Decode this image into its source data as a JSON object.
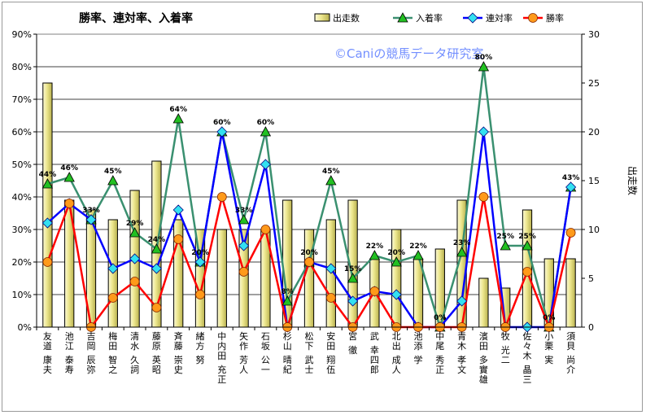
{
  "chart_data": {
    "type": "bar+line",
    "title": "勝率、連対率、入着率",
    "watermark": "©Caniの競馬データ研究室",
    "y2label": "出走数",
    "ylim": [
      0,
      90
    ],
    "y2lim": [
      0,
      30
    ],
    "yticks": [
      "0%",
      "10%",
      "20%",
      "30%",
      "40%",
      "50%",
      "60%",
      "70%",
      "80%",
      "90%"
    ],
    "y2ticks": [
      "0",
      "5",
      "10",
      "15",
      "20",
      "25",
      "30"
    ],
    "grid": true,
    "legend_position": "top-right",
    "categories": [
      "友道 康夫",
      "池江 泰寿",
      "吉岡 辰弥",
      "梅田 智之",
      "清水 久詞",
      "藤原 英昭",
      "斉藤 崇史",
      "緒方 努",
      "中内田 充正",
      "矢作 芳人",
      "石坂 公一",
      "杉山 晴紀",
      "松下 武士",
      "安田 翔伍",
      "宮 徹",
      "武 幸四郎",
      "北出 成人",
      "池添 学",
      "中尾 秀正",
      "青木 孝文",
      "濱田 多實雄",
      "牧 光二",
      "佐々木 晶三",
      "小栗 実",
      "須貝 尚介"
    ],
    "series": [
      {
        "name": "出走数",
        "type": "bar",
        "axis": "right",
        "color": "#f0eca0",
        "values": [
          25,
          13,
          12,
          11,
          14,
          17,
          11,
          10,
          10,
          10,
          10,
          13,
          10,
          11,
          13,
          7,
          10,
          7,
          8,
          13,
          5,
          4,
          12,
          7,
          7
        ]
      },
      {
        "name": "入着率",
        "type": "line",
        "axis": "left",
        "color": "#3a9070",
        "marker": "triangle",
        "values": [
          44,
          46,
          33,
          45,
          29,
          24,
          64,
          20,
          60,
          33,
          60,
          8,
          20,
          45,
          15,
          22,
          20,
          22,
          0,
          23,
          80,
          25,
          25,
          0,
          43
        ]
      },
      {
        "name": "連対率",
        "type": "line",
        "axis": "left",
        "color": "#0000ff",
        "marker": "diamond",
        "values": [
          32,
          38,
          33,
          18,
          21,
          18,
          36,
          20,
          60,
          25,
          50,
          0,
          20,
          18,
          8,
          11,
          10,
          0,
          0,
          8,
          60,
          0,
          0,
          0,
          43
        ]
      },
      {
        "name": "勝率",
        "type": "line",
        "axis": "left",
        "color": "#ff0000",
        "marker": "circle",
        "values": [
          20,
          38,
          0,
          9,
          14,
          6,
          27,
          10,
          40,
          17,
          30,
          0,
          20,
          9,
          0,
          11,
          0,
          0,
          0,
          0,
          40,
          0,
          17,
          0,
          29
        ]
      }
    ],
    "data_labels": [
      {
        "series": "入着率",
        "index": 0,
        "text": "44%"
      },
      {
        "series": "入着率",
        "index": 1,
        "text": "46%"
      },
      {
        "series": "入着率",
        "index": 2,
        "text": "33%"
      },
      {
        "series": "入着率",
        "index": 3,
        "text": "45%"
      },
      {
        "series": "入着率",
        "index": 4,
        "text": "29%"
      },
      {
        "series": "入着率",
        "index": 5,
        "text": "24%"
      },
      {
        "series": "入着率",
        "index": 6,
        "text": "64%"
      },
      {
        "series": "入着率",
        "index": 7,
        "text": "20%"
      },
      {
        "series": "入着率",
        "index": 8,
        "text": "60%"
      },
      {
        "series": "入着率",
        "index": 9,
        "text": "33%"
      },
      {
        "series": "入着率",
        "index": 10,
        "text": "60%"
      },
      {
        "series": "入着率",
        "index": 11,
        "text": "8%"
      },
      {
        "series": "入着率",
        "index": 12,
        "text": "20%"
      },
      {
        "series": "入着率",
        "index": 13,
        "text": "45%"
      },
      {
        "series": "入着率",
        "index": 14,
        "text": "15%"
      },
      {
        "series": "入着率",
        "index": 15,
        "text": "22%"
      },
      {
        "series": "入着率",
        "index": 16,
        "text": "20%"
      },
      {
        "series": "入着率",
        "index": 17,
        "text": "22%"
      },
      {
        "series": "入着率",
        "index": 18,
        "text": "0%"
      },
      {
        "series": "入着率",
        "index": 19,
        "text": "23%"
      },
      {
        "series": "入着率",
        "index": 20,
        "text": "80%"
      },
      {
        "series": "入着率",
        "index": 21,
        "text": "25%"
      },
      {
        "series": "入着率",
        "index": 22,
        "text": "25%"
      },
      {
        "series": "入着率",
        "index": 23,
        "text": "0%"
      },
      {
        "series": "入着率",
        "index": 24,
        "text": "43%"
      }
    ]
  }
}
